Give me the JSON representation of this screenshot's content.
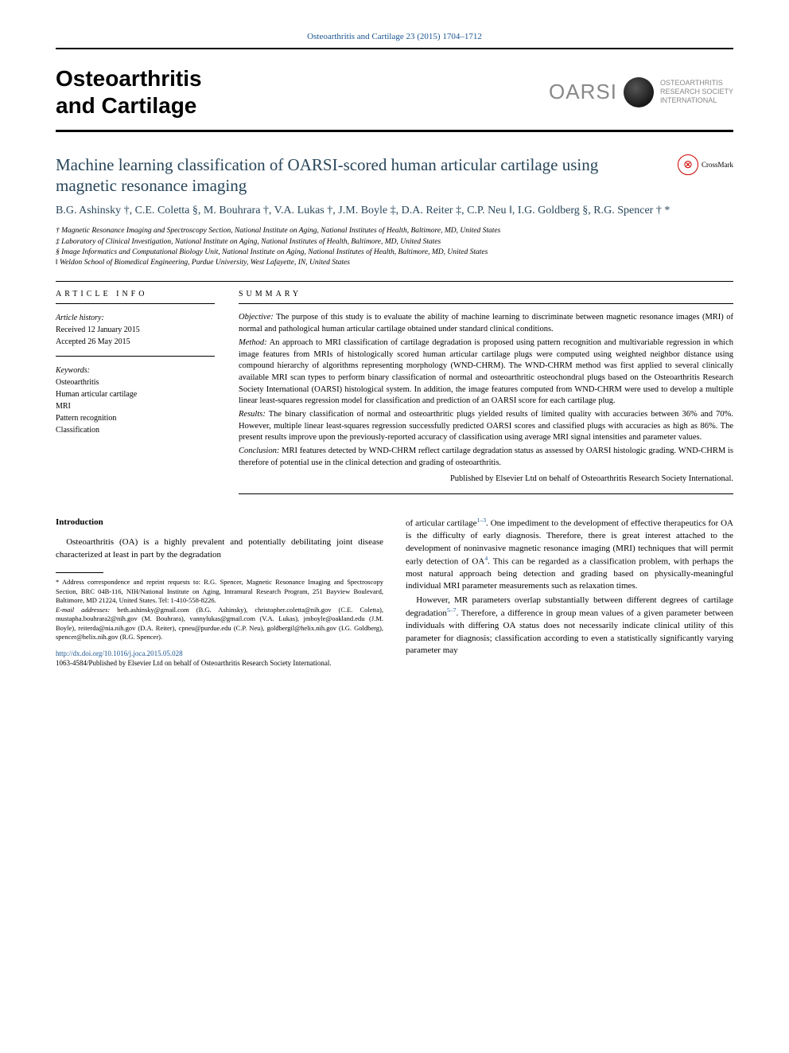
{
  "citation": "Osteoarthritis and Cartilage 23 (2015) 1704–1712",
  "journal": {
    "line1": "Osteoarthritis",
    "line2": "and Cartilage"
  },
  "logo": {
    "acronym": "OARSI",
    "line1": "OSTEOARTHRITIS",
    "line2": "RESEARCH SOCIETY",
    "line3": "INTERNATIONAL"
  },
  "title": "Machine learning classification of OARSI-scored human articular cartilage using magnetic resonance imaging",
  "crossmark": "CrossMark",
  "authors": "B.G. Ashinsky †, C.E. Coletta §, M. Bouhrara †, V.A. Lukas †, J.M. Boyle ‡, D.A. Reiter ‡, C.P. Neu ‖, I.G. Goldberg §, R.G. Spencer † *",
  "affiliations": [
    "† Magnetic Resonance Imaging and Spectroscopy Section, National Institute on Aging, National Institutes of Health, Baltimore, MD, United States",
    "‡ Laboratory of Clinical Investigation, National Institute on Aging, National Institutes of Health, Baltimore, MD, United States",
    "§ Image Informatics and Computational Biology Unit, National Institute on Aging, National Institutes of Health, Baltimore, MD, United States",
    "‖ Weldon School of Biomedical Engineering, Purdue University, West Lafayette, IN, United States"
  ],
  "article_info": {
    "label": "ARTICLE INFO",
    "history_head": "Article history:",
    "received": "Received 12 January 2015",
    "accepted": "Accepted 26 May 2015",
    "keywords_head": "Keywords:",
    "keywords": [
      "Osteoarthritis",
      "Human articular cartilage",
      "MRI",
      "Pattern recognition",
      "Classification"
    ]
  },
  "summary": {
    "label": "SUMMARY",
    "objective_label": "Objective:",
    "objective": " The purpose of this study is to evaluate the ability of machine learning to discriminate between magnetic resonance images (MRI) of normal and pathological human articular cartilage obtained under standard clinical conditions.",
    "method_label": "Method:",
    "method": " An approach to MRI classification of cartilage degradation is proposed using pattern recognition and multivariable regression in which image features from MRIs of histologically scored human articular cartilage plugs were computed using weighted neighbor distance using compound hierarchy of algorithms representing morphology (WND-CHRM). The WND-CHRM method was first applied to several clinically available MRI scan types to perform binary classification of normal and osteoarthritic osteochondral plugs based on the Osteoarthritis Research Society International (OARSI) histological system. In addition, the image features computed from WND-CHRM were used to develop a multiple linear least-squares regression model for classification and prediction of an OARSI score for each cartilage plug.",
    "results_label": "Results:",
    "results": " The binary classification of normal and osteoarthritic plugs yielded results of limited quality with accuracies between 36% and 70%. However, multiple linear least-squares regression successfully predicted OARSI scores and classified plugs with accuracies as high as 86%. The present results improve upon the previously-reported accuracy of classification using average MRI signal intensities and parameter values.",
    "conclusion_label": "Conclusion:",
    "conclusion": " MRI features detected by WND-CHRM reflect cartilage degradation status as assessed by OARSI histologic grading. WND-CHRM is therefore of potential use in the clinical detection and grading of osteoarthritis.",
    "publisher": "Published by Elsevier Ltd on behalf of Osteoarthritis Research Society International."
  },
  "body": {
    "heading": "Introduction",
    "left_p1": "Osteoarthritis (OA) is a highly prevalent and potentially debilitating joint disease characterized at least in part by the degradation",
    "right_p1_a": "of articular cartilage",
    "right_p1_ref": "1–3",
    "right_p1_b": ". One impediment to the development of effective therapeutics for OA is the difficulty of early diagnosis. Therefore, there is great interest attached to the development of noninvasive magnetic resonance imaging (MRI) techniques that will permit early detection of OA",
    "right_p1_ref2": "4",
    "right_p1_c": ". This can be regarded as a classification problem, with perhaps the most natural approach being detection and grading based on physically-meaningful individual MRI parameter measurements such as relaxation times.",
    "right_p2_a": "However, MR parameters overlap substantially between different degrees of cartilage degradation",
    "right_p2_ref": "5–7",
    "right_p2_b": ". Therefore, a difference in group mean values of a given parameter between individuals with differing OA status does not necessarily indicate clinical utility of this parameter for diagnosis; classification according to even a statistically significantly varying parameter may"
  },
  "footnotes": {
    "corr": "* Address correspondence and reprint requests to: R.G. Spencer, Magnetic Resonance Imaging and Spectroscopy Section, BRC 04B-116, NIH/National Institute on Aging, Intramural Research Program, 251 Bayview Boulevard, Baltimore, MD 21224, United States. Tel: 1-410-558-8226.",
    "email_label": "E-mail addresses:",
    "emails": " beth.ashinsky@gmail.com (B.G. Ashinsky), christopher.coletta@nih.gov (C.E. Coletta), mustapha.bouhrara2@nih.gov (M. Bouhrara), vannylukas@gmail.com (V.A. Lukas), jmboyle@oakland.edu (J.M. Boyle), reiterda@nia.nih.gov (D.A. Reiter), cpneu@purdue.edu (C.P. Neu), goldbergil@helix.nih.gov (I.G. Goldberg), spencer@helix.nih.gov (R.G. Spencer)."
  },
  "doi": "http://dx.doi.org/10.1016/j.joca.2015.05.028",
  "copyright": "1063-4584/Published by Elsevier Ltd on behalf of Osteoarthritis Research Society International.",
  "colors": {
    "link": "#1a5490",
    "heading": "#28465a",
    "background": "#ffffff"
  }
}
